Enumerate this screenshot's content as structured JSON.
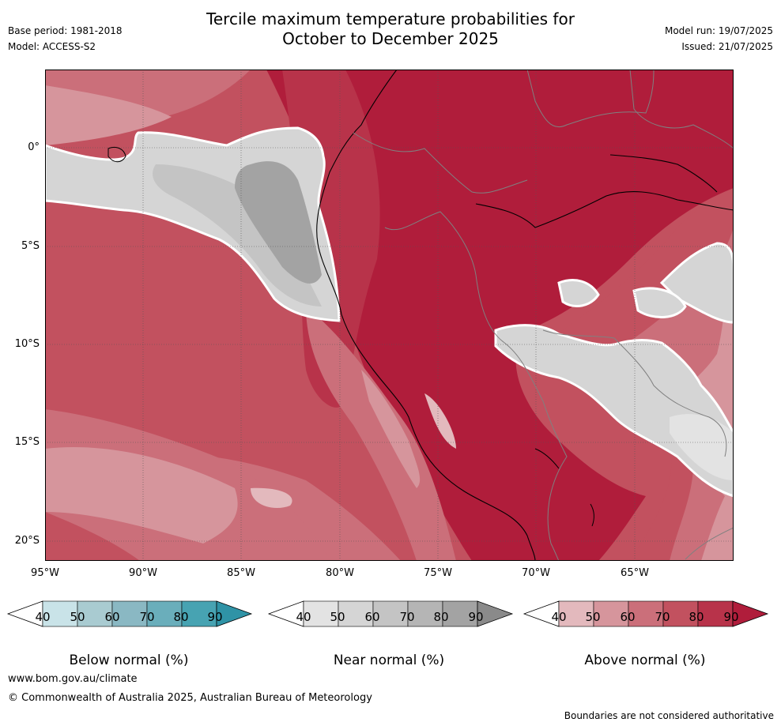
{
  "title_line1": "Tercile maximum temperature probabilities for",
  "title_line2": "October to December 2025",
  "base_period": "Base period: 1981-2018",
  "model": "Model: ACCESS-S2",
  "model_run": "Model run: 19/07/2025",
  "issued": "Issued: 21/07/2025",
  "map": {
    "lon_labels": [
      "95°W",
      "90°W",
      "85°W",
      "80°W",
      "75°W",
      "70°W",
      "65°W"
    ],
    "lat_labels": [
      "0°",
      "5°S",
      "10°S",
      "15°S",
      "20°S"
    ]
  },
  "colorbars": [
    {
      "label": "Below normal (%)",
      "ticks": [
        "40",
        "50",
        "60",
        "70",
        "80",
        "90"
      ],
      "colors": [
        "#ffffff",
        "#c9e3e8",
        "#a9cbd1",
        "#8ab8c3",
        "#6aaebb",
        "#47a3b2",
        "#2f93a6"
      ]
    },
    {
      "label": "Near normal (%)",
      "ticks": [
        "40",
        "50",
        "60",
        "70",
        "80",
        "90"
      ],
      "colors": [
        "#ffffff",
        "#e3e3e3",
        "#d5d5d5",
        "#c4c4c4",
        "#b5b5b5",
        "#a3a3a3",
        "#8a8a8a"
      ]
    },
    {
      "label": "Above normal (%)",
      "ticks": [
        "40",
        "50",
        "60",
        "70",
        "80",
        "90"
      ],
      "colors": [
        "#ffffff",
        "#e3b9bd",
        "#d6959c",
        "#cb6f7a",
        "#c2515f",
        "#b8334a",
        "#b01d3b"
      ]
    }
  ],
  "website": "www.bom.gov.au/climate",
  "copyright": "© Commonwealth of Australia 2025, Australian Bureau of Meteorology",
  "boundaries_note": "Boundaries are not considered authoritative"
}
